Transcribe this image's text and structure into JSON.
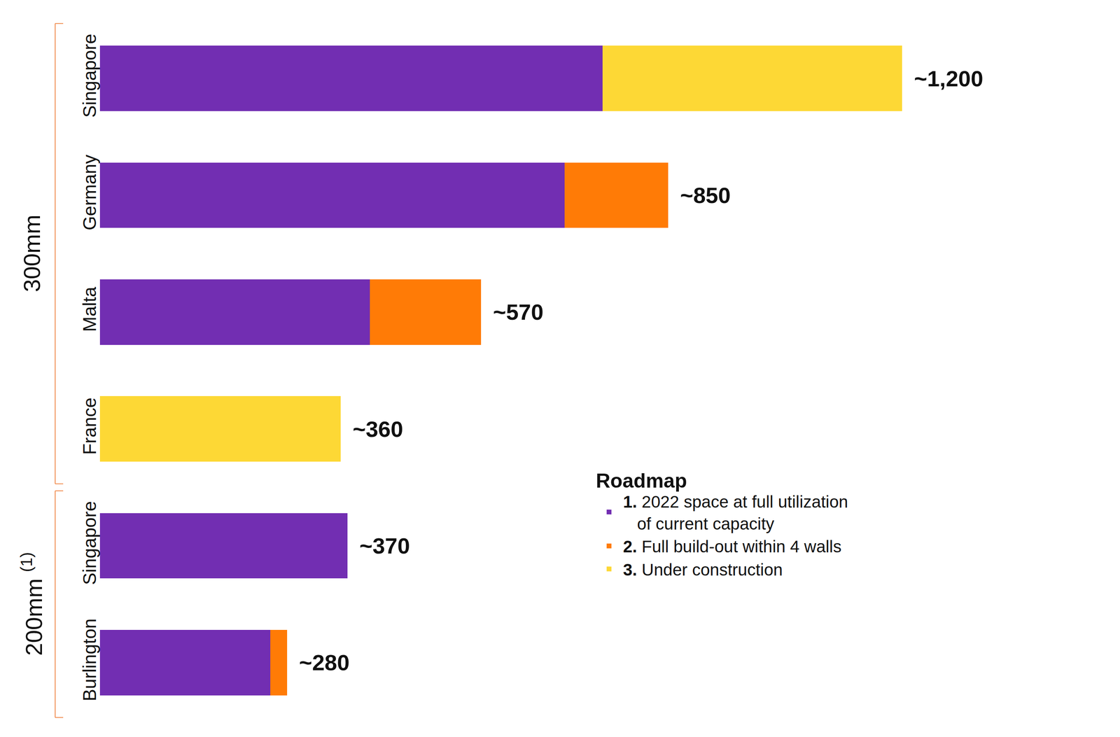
{
  "chart_data": {
    "type": "bar",
    "orientation": "horizontal",
    "stacked": true,
    "grid": false,
    "tick_labels": "y",
    "legend": "lower right",
    "legend_title": "Roadmap",
    "categories": [
      "Singapore",
      "Germany",
      "Malta",
      "France",
      "Singapore",
      "Burlington"
    ],
    "groups": [
      {
        "label": "300mm",
        "count": 4
      },
      {
        "label": "200mm",
        "count": 2,
        "note": "(1)"
      }
    ],
    "series": [
      {
        "name": "1. 2022 space at full utilization of current capacity",
        "color": "#722eb2",
        "values": [
          752,
          695,
          404,
          null,
          370,
          255
        ]
      },
      {
        "name": "2. Full build-out within 4 walls",
        "color": "#ff7b06",
        "values": [
          null,
          155,
          166,
          null,
          null,
          25
        ]
      },
      {
        "name": "3. Under construction",
        "color": "#fdd835",
        "values": [
          448,
          null,
          null,
          360,
          null,
          null
        ]
      }
    ],
    "totals": [
      1200,
      850,
      570,
      360,
      370,
      280
    ],
    "total_labels": [
      "~1,200",
      "~850",
      "~570",
      "~360",
      "~370",
      "~280"
    ]
  }
}
